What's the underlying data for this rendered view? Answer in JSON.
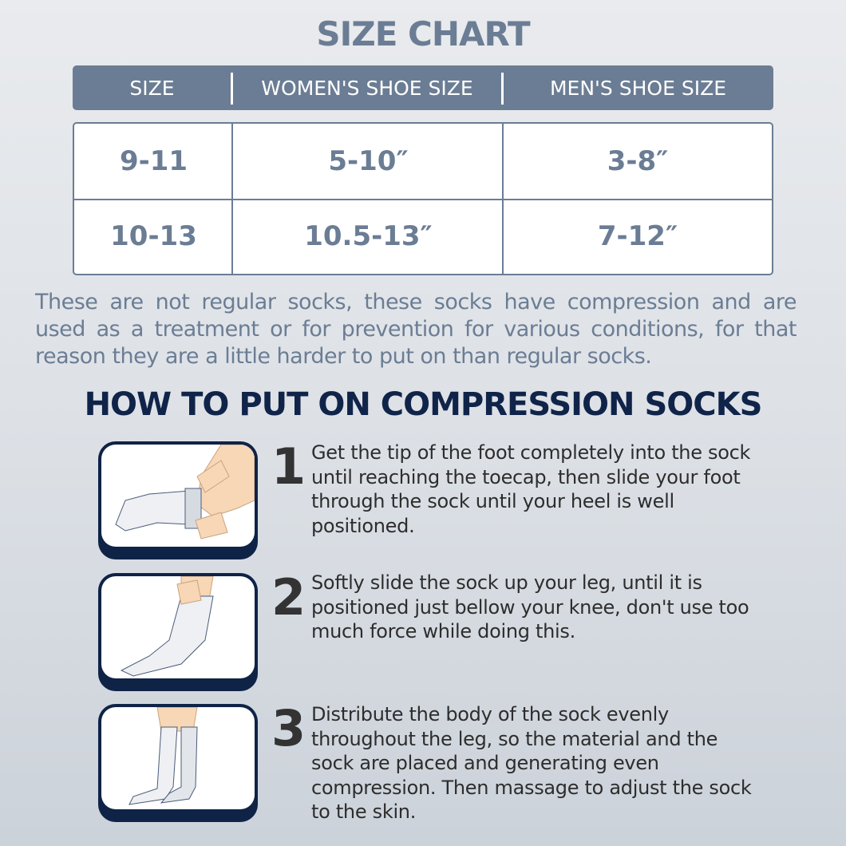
{
  "title": "SIZE CHART",
  "table": {
    "headers": [
      "SIZE",
      "WOMEN'S SHOE SIZE",
      "MEN'S SHOE SIZE"
    ],
    "rows": [
      [
        "9-11",
        "5-10″",
        "3-8″"
      ],
      [
        "10-13",
        "10.5-13″",
        "7-12″"
      ]
    ]
  },
  "intro": "These are not regular socks, these socks have compression and are used as a treatment or for prevention for various conditions, for that reason they are a little harder to put on than regular socks.",
  "how_to": {
    "heading": "HOW TO PUT ON COMPRESSION SOCKS",
    "steps": [
      {
        "number": "1",
        "text": "Get the tip of the foot completely into the sock until reaching the toecap, then slide your foot through the sock until your heel is well positioned.",
        "icon": "hands-pulling-sock-illustration"
      },
      {
        "number": "2",
        "text": "Softly slide the sock up your leg, until it is positioned just bellow your knee, don't use too much force while doing this.",
        "icon": "sock-on-leg-illustration"
      },
      {
        "number": "3",
        "text": "Distribute the body of the sock evenly throughout the leg, so the material and the sock are placed and generating even compression. Then massage to adjust the sock to the skin.",
        "icon": "legs-with-knee-socks-illustration"
      }
    ]
  },
  "colors": {
    "slate": "#6b7d94",
    "navy": "#0f2347",
    "skin": "#f7d7b5"
  }
}
